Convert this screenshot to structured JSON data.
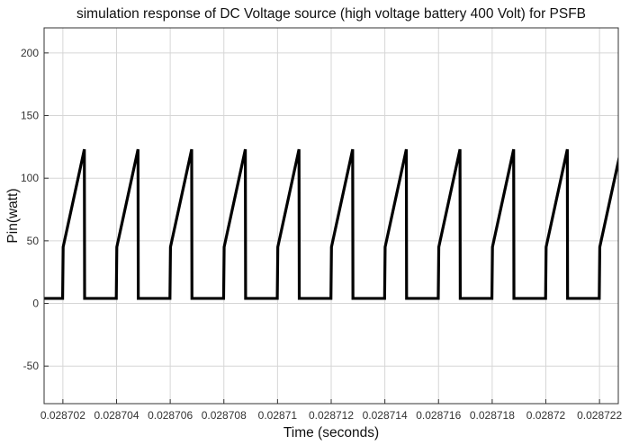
{
  "chart_data": {
    "type": "line",
    "title": "simulation response of DC Voltage source (high voltage battery  400 Volt) for PSFB",
    "xlabel": "Time (seconds)",
    "ylabel": "Pin(watt)",
    "xlim": [
      0.0287013,
      0.0287227
    ],
    "ylim": [
      -80,
      220
    ],
    "grid": true,
    "x_ticks": [
      0.028702,
      0.028704,
      0.028706,
      0.028708,
      0.02871,
      0.028712,
      0.028714,
      0.028716,
      0.028718,
      0.02872,
      0.028722
    ],
    "x_tick_labels": [
      "0.028702",
      "0.028704",
      "0.028706",
      "0.028708",
      "0.02871",
      "0.028712",
      "0.028714",
      "0.028716",
      "0.028718",
      "0.02872",
      "0.028722"
    ],
    "y_ticks": [
      -50,
      0,
      50,
      100,
      150,
      200
    ],
    "y_tick_labels": [
      "-50",
      "0",
      "50",
      "100",
      "150",
      "200"
    ],
    "series": [
      {
        "color": "#000000",
        "x": [
          0.0287013,
          0.02870199,
          0.02870201,
          0.0287028,
          0.02870281,
          0.02870399,
          0.02870401,
          0.0287048,
          0.02870481,
          0.02870599,
          0.02870601,
          0.0287068,
          0.02870681,
          0.02870799,
          0.02870801,
          0.0287088,
          0.02870881,
          0.02870999,
          0.02871001,
          0.0287108,
          0.02871081,
          0.02871199,
          0.02871201,
          0.0287128,
          0.02871281,
          0.02871399,
          0.02871401,
          0.0287148,
          0.02871481,
          0.02871599,
          0.02871601,
          0.0287168,
          0.02871681,
          0.02871799,
          0.02871801,
          0.0287188,
          0.02871881,
          0.02871999,
          0.02872001,
          0.0287208,
          0.02872081,
          0.02872199,
          0.02872201,
          0.0287228
        ],
        "y": [
          4,
          4,
          45,
          123,
          4,
          4,
          45,
          123,
          4,
          4,
          45,
          123,
          4,
          4,
          45,
          123,
          4,
          4,
          45,
          123,
          4,
          4,
          45,
          123,
          4,
          4,
          45,
          123,
          4,
          4,
          45,
          123,
          4,
          4,
          45,
          123,
          4,
          4,
          45,
          123,
          4,
          4,
          45,
          123
        ]
      }
    ]
  }
}
